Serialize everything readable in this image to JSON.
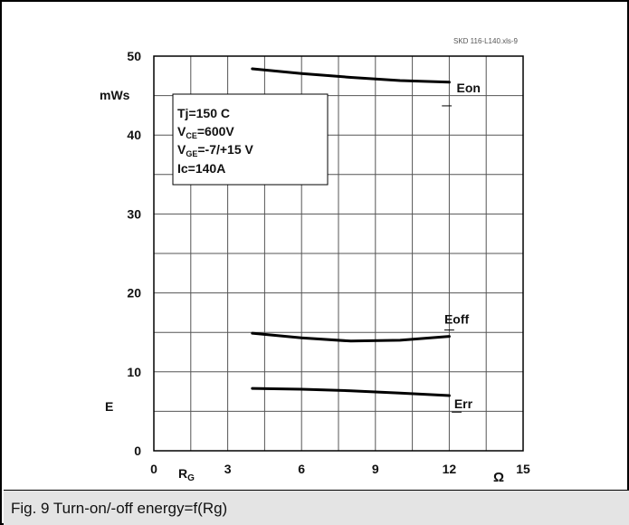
{
  "caption": "Fig. 9 Turn-on/-off energy=f(Rg)",
  "chart_data": {
    "type": "line",
    "doc_id": "SKD 116-L140.xls-9",
    "y_unit": "mWs",
    "y_symbol": "E",
    "x_symbol_main": "R",
    "x_symbol_sub": "G",
    "x_unit": "Ω",
    "xlim": [
      0,
      15
    ],
    "ylim": [
      0,
      50
    ],
    "x_ticks": [
      "0",
      "3",
      "6",
      "9",
      "12",
      "15"
    ],
    "y_ticks": [
      "0",
      "10",
      "20",
      "30",
      "40",
      "50"
    ],
    "grid": true,
    "conditions": [
      {
        "main": "Tj=150 C",
        "sub": "",
        "rest": ""
      },
      {
        "main": "V",
        "sub": "CE",
        "rest": "=600V"
      },
      {
        "main": "V",
        "sub": "GE",
        "rest": "=-7/+15 V"
      },
      {
        "main": "Ic=140A",
        "sub": "",
        "rest": ""
      }
    ],
    "series": [
      {
        "name": "Eon",
        "x": [
          4,
          6,
          8,
          10,
          12
        ],
        "y": [
          48.4,
          47.8,
          47.3,
          46.9,
          46.7
        ],
        "label_at": [
          12.3,
          45.4
        ]
      },
      {
        "name": "Eoff",
        "x": [
          4,
          6,
          8,
          10,
          12
        ],
        "y": [
          14.9,
          14.3,
          13.9,
          14.0,
          14.5
        ],
        "label_at": [
          11.8,
          16.1
        ]
      },
      {
        "name": "Err",
        "x": [
          4,
          6,
          8,
          10,
          12
        ],
        "y": [
          7.9,
          7.8,
          7.6,
          7.3,
          7.0
        ],
        "label_at": [
          12.2,
          5.4
        ]
      }
    ]
  }
}
